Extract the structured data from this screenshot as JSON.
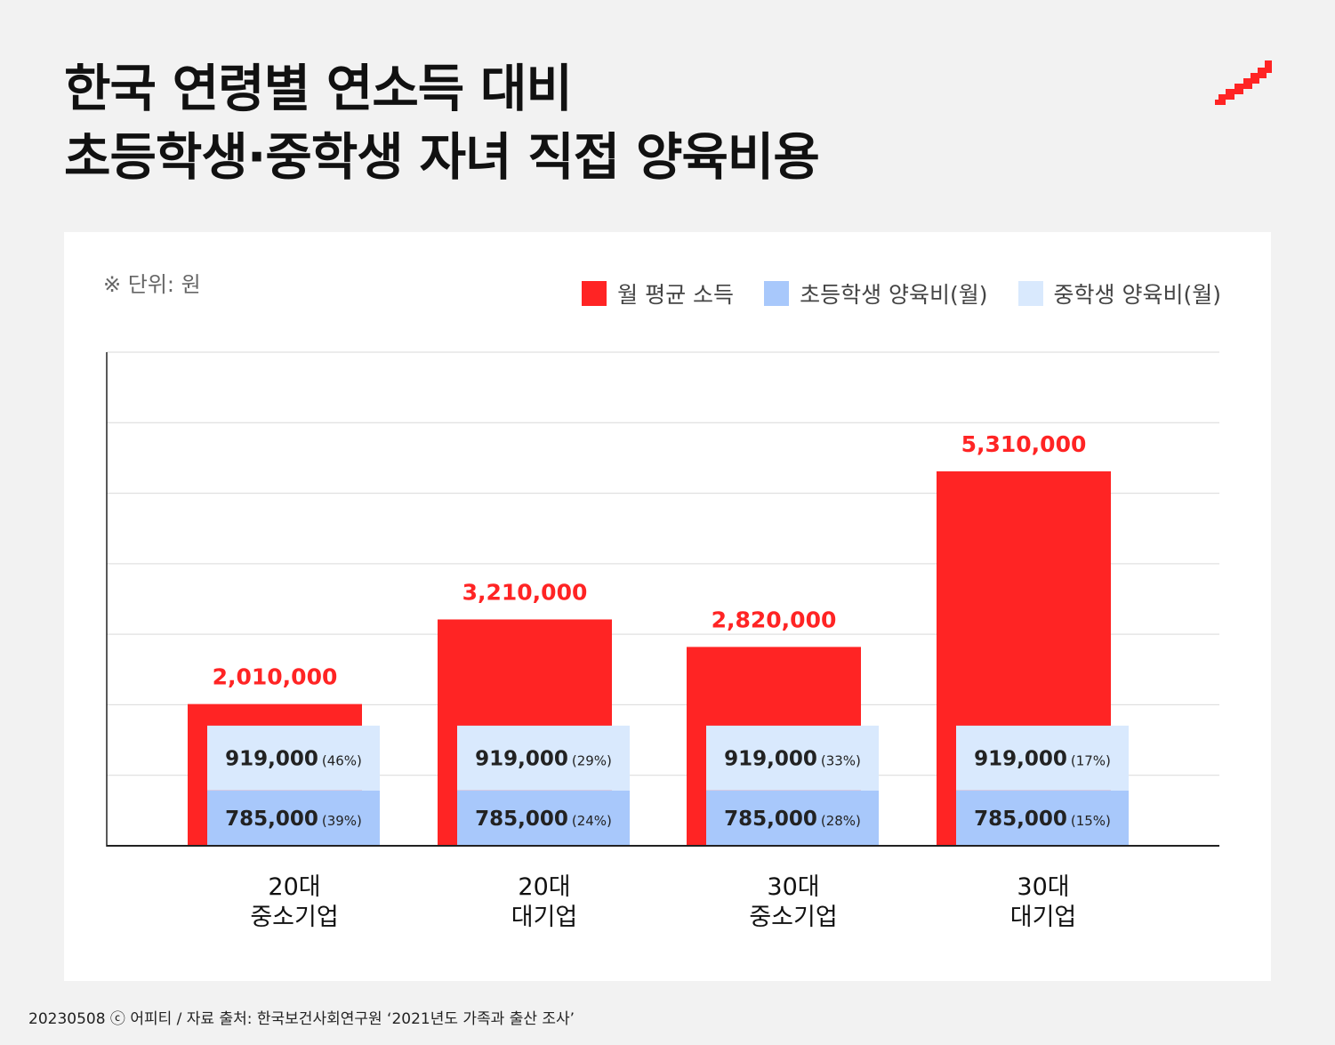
{
  "title_lines": [
    "한국 연령별 연소득 대비",
    "초등학생·중학생 자녀 직접 양육비용"
  ],
  "unit_note": "※ 단위: 원",
  "footer": "20230508 ⓒ 어피티 / 자료 출처: 한국보건사회연구원 ‘2021년도 가족과 출산 조사’",
  "colors": {
    "income": "#ff2424",
    "elementary": "#a8c8fb",
    "middle": "#d9e9fd",
    "grid": "#d9d9d9",
    "axis": "#222222",
    "income_label": "#ff2424",
    "background": "#f2f2f2",
    "panel": "#ffffff"
  },
  "icons": {
    "brand": "red-staircase-logo"
  },
  "chart_data": {
    "type": "bar",
    "categories": [
      [
        "20대",
        "중소기업"
      ],
      [
        "20대",
        "대기업"
      ],
      [
        "30대",
        "중소기업"
      ],
      [
        "30대",
        "대기업"
      ]
    ],
    "series": [
      {
        "name": "월 평균 소득",
        "values": [
          2010000,
          3210000,
          2820000,
          5310000
        ],
        "labels": [
          "2,010,000",
          "3,210,000",
          "2,820,000",
          "5,310,000"
        ]
      },
      {
        "name": "초등학생 양육비(월)",
        "values": [
          785000,
          785000,
          785000,
          785000
        ],
        "labels": [
          "785,000",
          "785,000",
          "785,000",
          "785,000"
        ],
        "percent_labels": [
          "(39%)",
          "(24%)",
          "(28%)",
          "(15%)"
        ]
      },
      {
        "name": "중학생 양육비(월)",
        "values": [
          919000,
          919000,
          919000,
          919000
        ],
        "labels": [
          "919,000",
          "919,000",
          "919,000",
          "919,000"
        ],
        "percent_labels": [
          "(46%)",
          "(29%)",
          "(33%)",
          "(17%)"
        ]
      }
    ],
    "ylim": [
      0,
      7000000
    ],
    "grid_step": 1000000,
    "grid": true,
    "legend_position": "top-right",
    "title": "",
    "xlabel": "",
    "ylabel": ""
  }
}
